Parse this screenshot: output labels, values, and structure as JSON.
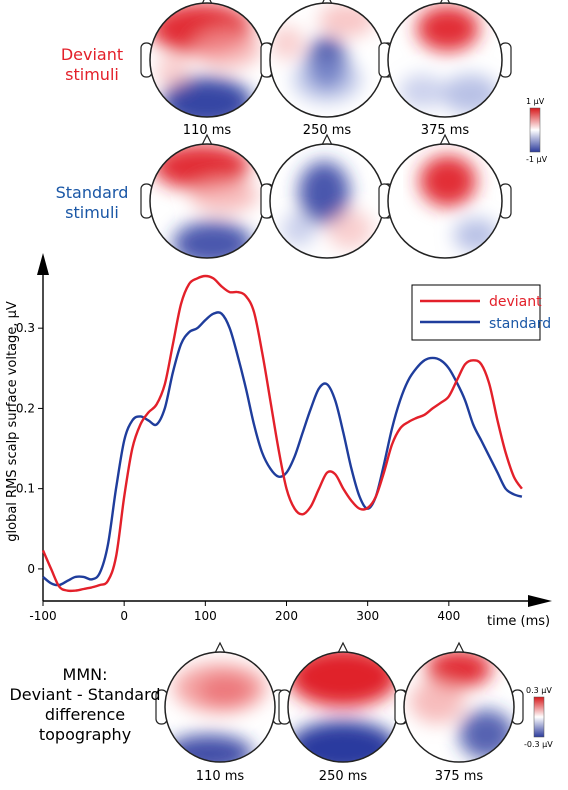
{
  "labels": {
    "deviant_line1": "Deviant",
    "deviant_line2": "stimuli",
    "standard_line1": "Standard",
    "standard_line2": "stimuli",
    "mmn_line1": "MMN:",
    "mmn_line2": "Deviant - Standard",
    "mmn_line3": "difference",
    "mmn_line4": "topography"
  },
  "top_time_labels": [
    "110 ms",
    "250 ms",
    "375 ms"
  ],
  "bottom_time_labels": [
    "110 ms",
    "250 ms",
    "375 ms"
  ],
  "colorbar_top": {
    "max_label": "1 μV",
    "min_label": "-1 μV"
  },
  "colorbar_bottom": {
    "max_label": "0.3 μV",
    "min_label": "-0.3 μV"
  },
  "colors": {
    "deviant": "#e3202a",
    "standard": "#1f3d9c",
    "deviant_label": "#e3202a",
    "standard_label": "#1a57a6"
  },
  "chart_data": {
    "type": "line",
    "ylabel": "global RMS scalp surface voltage, μV",
    "xlabel": "time (ms)",
    "xlim": [
      -100,
      500
    ],
    "ylim": [
      -0.04,
      0.37
    ],
    "xticks": [
      -100,
      0,
      100,
      200,
      300,
      400
    ],
    "yticks": [
      0,
      0.1,
      0.2,
      0.3
    ],
    "legend_position": "top-right",
    "series": [
      {
        "name": "deviant",
        "x": [
          -100,
          -90,
          -80,
          -70,
          -60,
          -50,
          -40,
          -30,
          -20,
          -10,
          0,
          10,
          20,
          30,
          40,
          50,
          60,
          70,
          80,
          90,
          100,
          110,
          120,
          130,
          140,
          150,
          160,
          170,
          180,
          190,
          200,
          210,
          220,
          230,
          240,
          250,
          260,
          270,
          280,
          290,
          300,
          310,
          320,
          330,
          340,
          350,
          360,
          370,
          380,
          390,
          400,
          410,
          420,
          430,
          440,
          450,
          460,
          470,
          480,
          490
        ],
        "values": [
          0.023,
          0.0,
          -0.022,
          -0.027,
          -0.027,
          -0.025,
          -0.023,
          -0.02,
          -0.015,
          0.015,
          0.09,
          0.15,
          0.18,
          0.195,
          0.205,
          0.23,
          0.28,
          0.33,
          0.355,
          0.362,
          0.365,
          0.362,
          0.352,
          0.345,
          0.345,
          0.34,
          0.32,
          0.27,
          0.21,
          0.15,
          0.1,
          0.075,
          0.068,
          0.078,
          0.1,
          0.12,
          0.118,
          0.1,
          0.085,
          0.075,
          0.076,
          0.09,
          0.12,
          0.155,
          0.175,
          0.183,
          0.188,
          0.192,
          0.2,
          0.207,
          0.215,
          0.235,
          0.255,
          0.26,
          0.255,
          0.23,
          0.185,
          0.145,
          0.115,
          0.1
        ]
      },
      {
        "name": "standard",
        "x": [
          -100,
          -90,
          -80,
          -70,
          -60,
          -50,
          -40,
          -30,
          -20,
          -10,
          0,
          10,
          20,
          30,
          40,
          50,
          60,
          70,
          80,
          90,
          100,
          110,
          120,
          130,
          140,
          150,
          160,
          170,
          180,
          190,
          200,
          210,
          220,
          230,
          240,
          250,
          260,
          270,
          280,
          290,
          300,
          310,
          320,
          330,
          340,
          350,
          360,
          370,
          380,
          390,
          400,
          410,
          420,
          430,
          440,
          450,
          460,
          470,
          480,
          490
        ],
        "values": [
          -0.01,
          -0.018,
          -0.02,
          -0.015,
          -0.01,
          -0.01,
          -0.013,
          -0.005,
          0.03,
          0.1,
          0.16,
          0.185,
          0.19,
          0.185,
          0.18,
          0.2,
          0.245,
          0.28,
          0.295,
          0.3,
          0.31,
          0.318,
          0.318,
          0.3,
          0.265,
          0.225,
          0.18,
          0.145,
          0.125,
          0.115,
          0.12,
          0.14,
          0.17,
          0.2,
          0.225,
          0.23,
          0.21,
          0.17,
          0.125,
          0.09,
          0.075,
          0.09,
          0.13,
          0.175,
          0.21,
          0.235,
          0.25,
          0.26,
          0.263,
          0.26,
          0.25,
          0.232,
          0.21,
          0.18,
          0.16,
          0.14,
          0.12,
          0.1,
          0.093,
          0.09
        ]
      }
    ]
  }
}
